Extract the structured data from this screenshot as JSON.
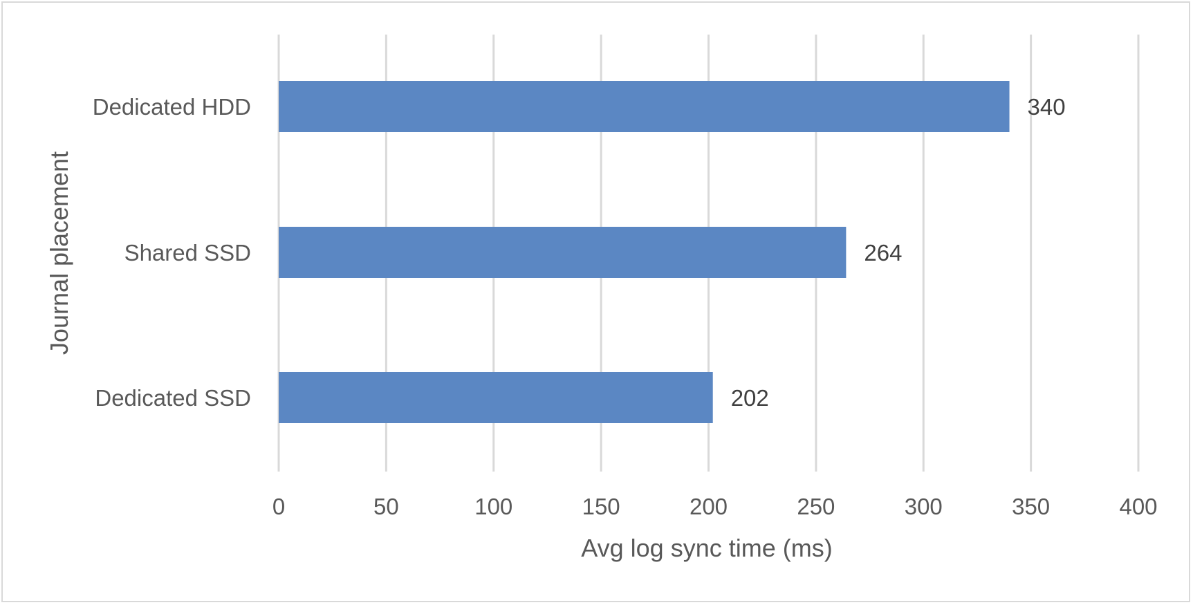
{
  "chart_data": {
    "type": "bar",
    "orientation": "horizontal",
    "categories": [
      "Dedicated HDD",
      "Shared SSD",
      "Dedicated SSD"
    ],
    "values": [
      340,
      264,
      202
    ],
    "data_labels": [
      "340",
      "264",
      "202"
    ],
    "xlabel": "Avg log sync time (ms)",
    "ylabel": "Journal placement",
    "xlim": [
      0,
      400
    ],
    "xticks": [
      0,
      50,
      100,
      150,
      200,
      250,
      300,
      350,
      400
    ],
    "xtick_labels": [
      "0",
      "50",
      "100",
      "150",
      "200",
      "250",
      "300",
      "350",
      "400"
    ],
    "grid": "vertical",
    "legend": "none",
    "bar_color": "#5b87c3",
    "grid_color": "#d9d9d9"
  }
}
